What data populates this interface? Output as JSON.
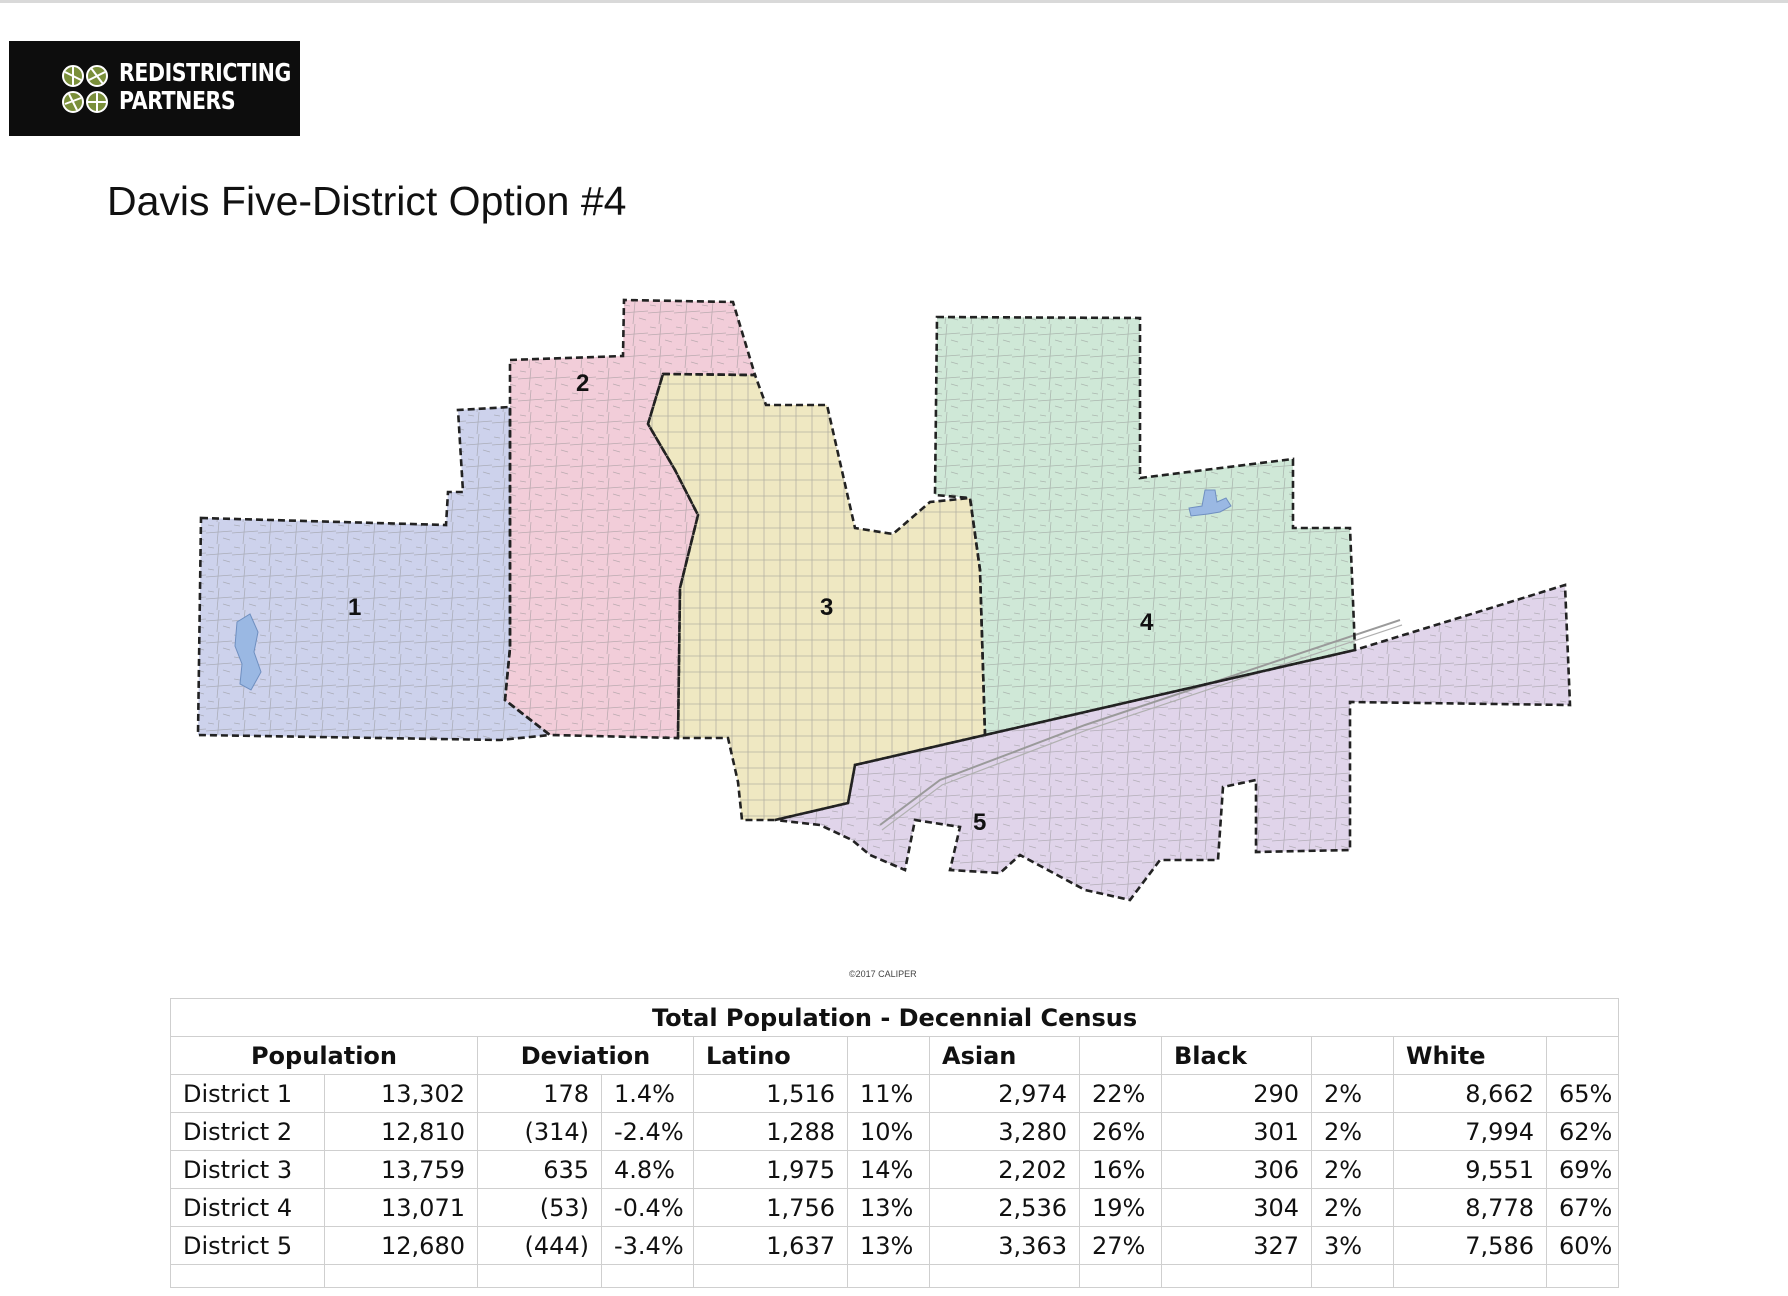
{
  "logo": {
    "line1": "REDISTRICTING",
    "line2": "PARTNERS"
  },
  "title": "Davis Five-District Option #4",
  "map": {
    "copyright": "©2017 CALIPER",
    "districts": [
      {
        "label": "1",
        "color": "#cdd2ec"
      },
      {
        "label": "2",
        "color": "#f2cdd9"
      },
      {
        "label": "3",
        "color": "#efe8c2"
      },
      {
        "label": "4",
        "color": "#cfe8d7"
      },
      {
        "label": "5",
        "color": "#e0d4ea"
      }
    ],
    "water_color": "#9ab8e3"
  },
  "table": {
    "caption": "Total Population - Decennial Census",
    "headers": {
      "population": "Population",
      "deviation": "Deviation",
      "latino": "Latino",
      "asian": "Asian",
      "black": "Black",
      "white": "White"
    },
    "rows": [
      {
        "district": "District 1",
        "population": "13,302",
        "dev_num": "178",
        "dev_pct": "1.4%",
        "latino": "1,516",
        "latino_pct": "11%",
        "asian": "2,974",
        "asian_pct": "22%",
        "black": "290",
        "black_pct": "2%",
        "white": "8,662",
        "white_pct": "65%"
      },
      {
        "district": "District 2",
        "population": "12,810",
        "dev_num": "(314)",
        "dev_pct": "-2.4%",
        "latino": "1,288",
        "latino_pct": "10%",
        "asian": "3,280",
        "asian_pct": "26%",
        "black": "301",
        "black_pct": "2%",
        "white": "7,994",
        "white_pct": "62%"
      },
      {
        "district": "District 3",
        "population": "13,759",
        "dev_num": "635",
        "dev_pct": "4.8%",
        "latino": "1,975",
        "latino_pct": "14%",
        "asian": "2,202",
        "asian_pct": "16%",
        "black": "306",
        "black_pct": "2%",
        "white": "9,551",
        "white_pct": "69%"
      },
      {
        "district": "District 4",
        "population": "13,071",
        "dev_num": "(53)",
        "dev_pct": "-0.4%",
        "latino": "1,756",
        "latino_pct": "13%",
        "asian": "2,536",
        "asian_pct": "19%",
        "black": "304",
        "black_pct": "2%",
        "white": "8,778",
        "white_pct": "67%"
      },
      {
        "district": "District 5",
        "population": "12,680",
        "dev_num": "(444)",
        "dev_pct": "-3.4%",
        "latino": "1,637",
        "latino_pct": "13%",
        "asian": "3,363",
        "asian_pct": "27%",
        "black": "327",
        "black_pct": "3%",
        "white": "7,586",
        "white_pct": "60%"
      }
    ]
  }
}
